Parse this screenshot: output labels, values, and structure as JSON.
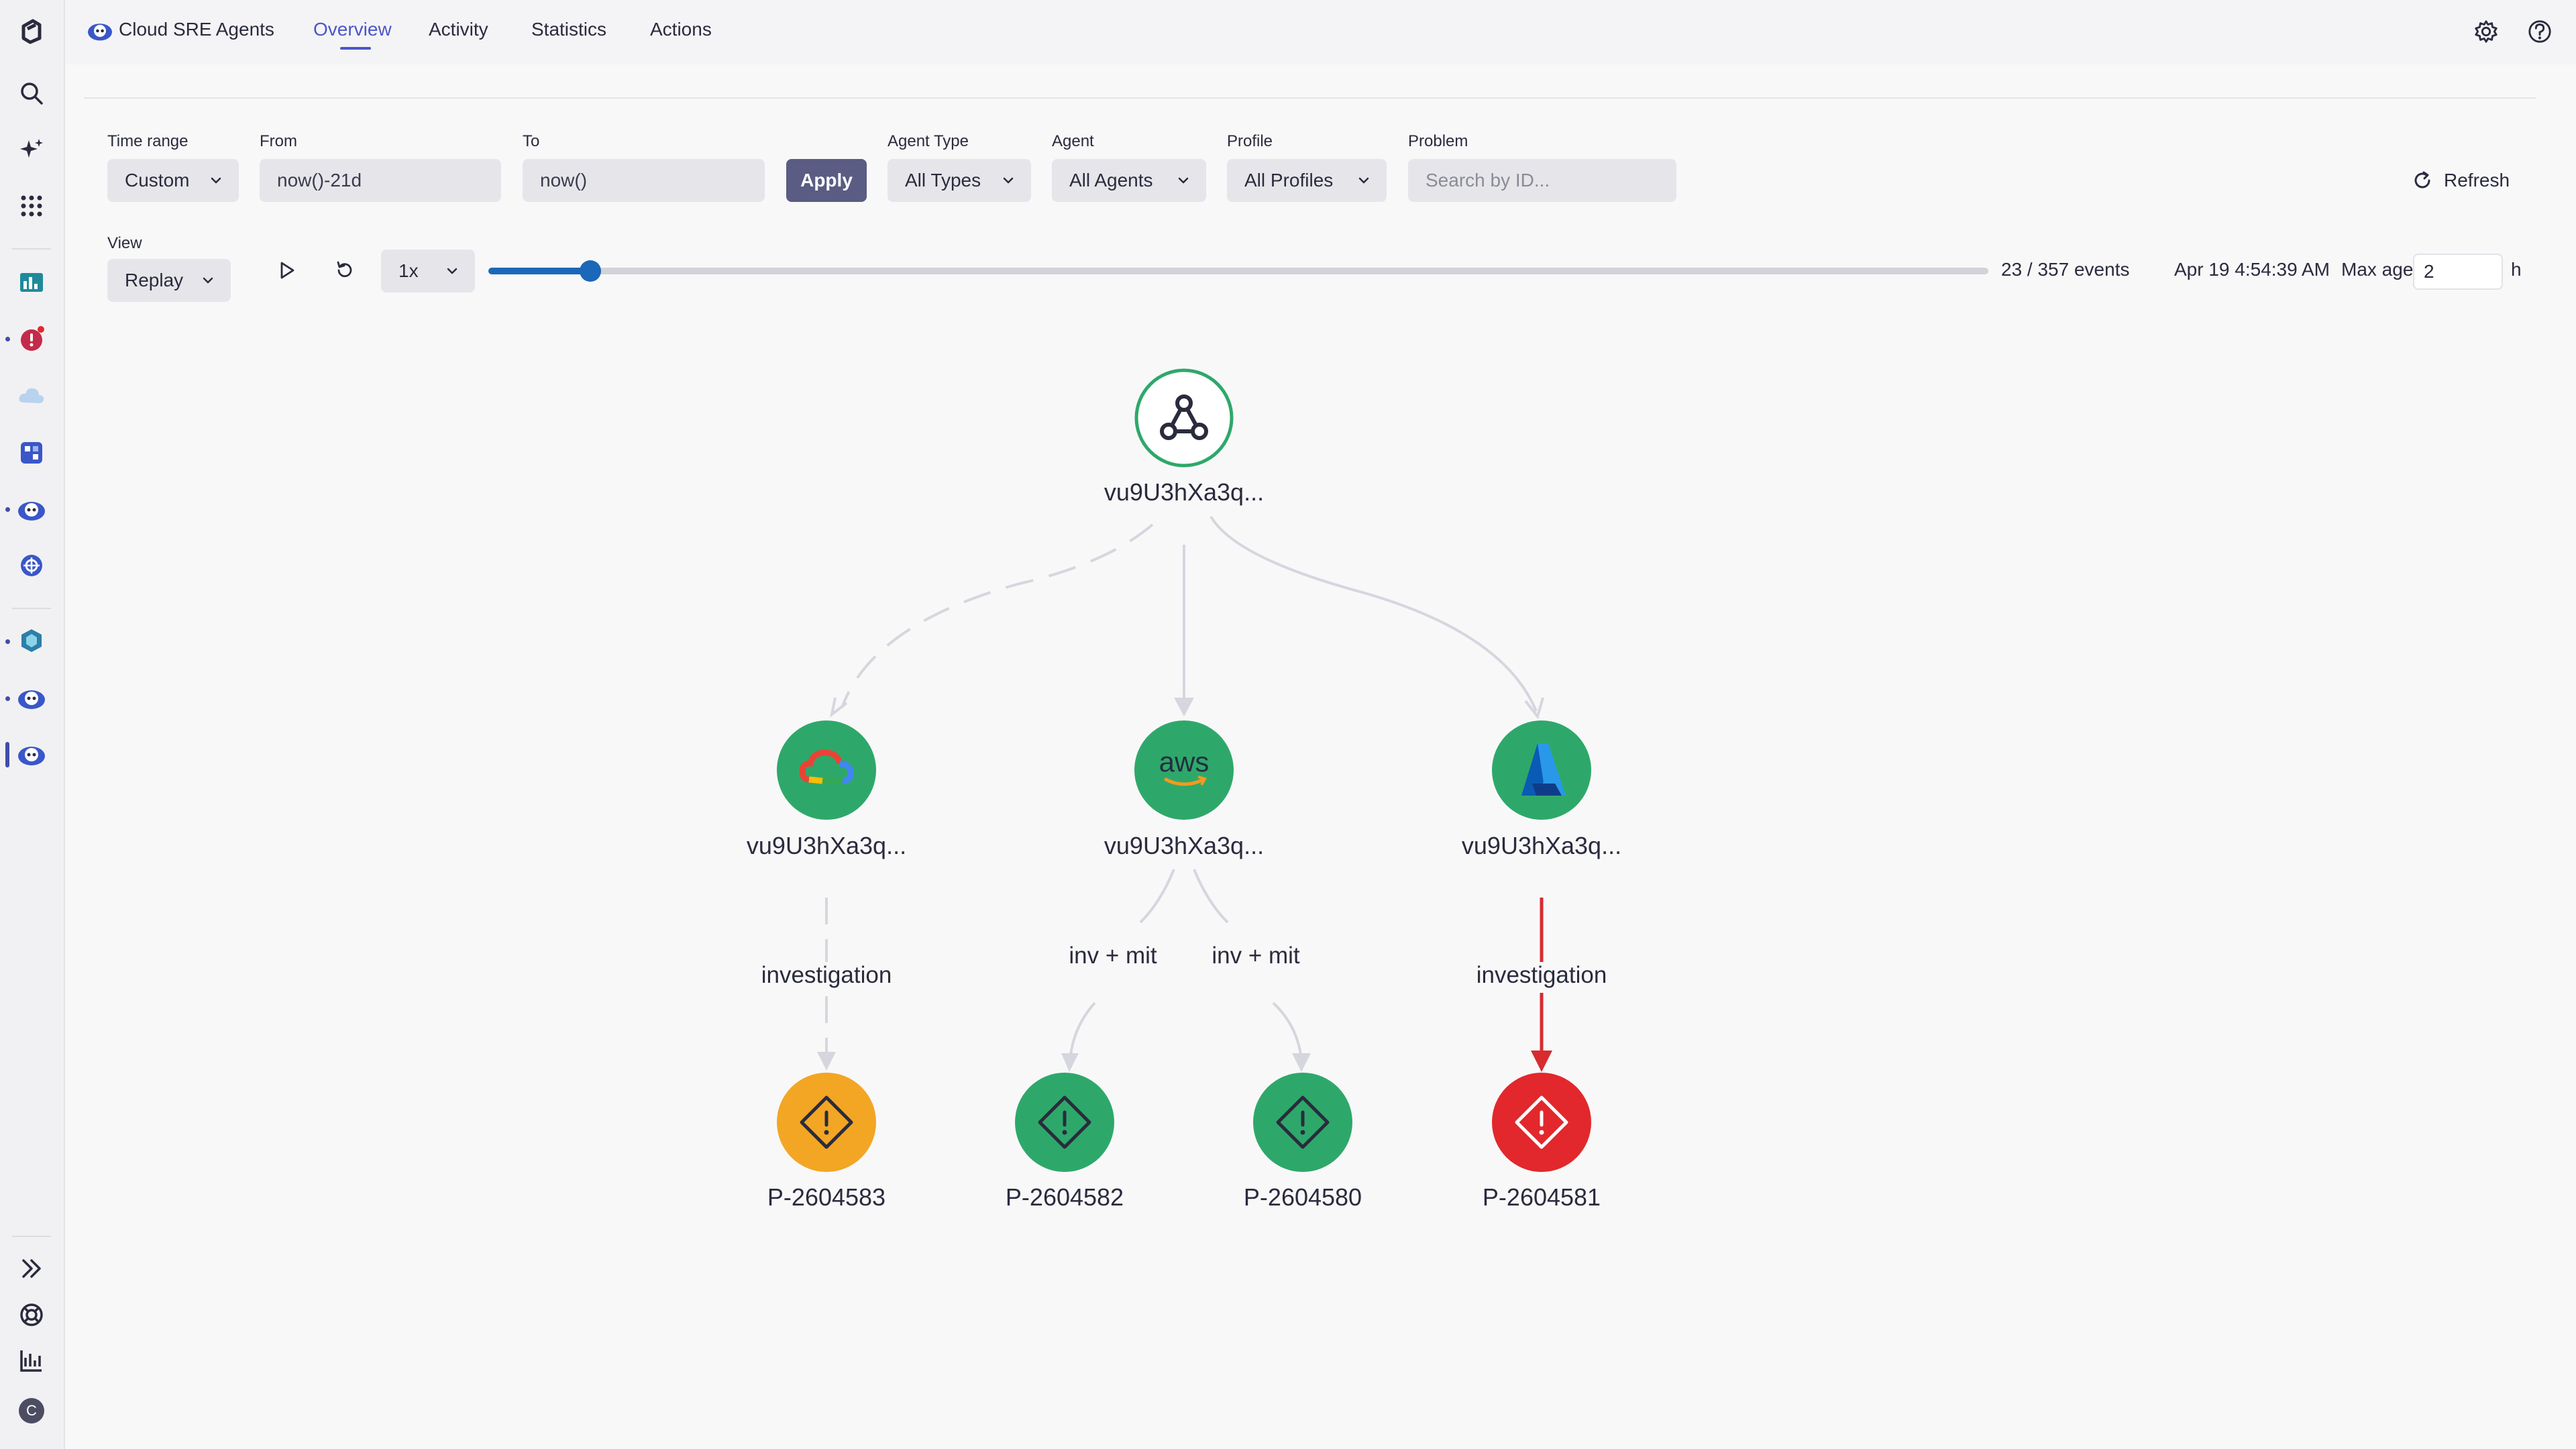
{
  "app": {
    "title": "Cloud SRE Agents"
  },
  "tabs": [
    {
      "label": "Overview",
      "active": true
    },
    {
      "label": "Activity"
    },
    {
      "label": "Statistics"
    },
    {
      "label": "Actions"
    }
  ],
  "filters": {
    "time_range": {
      "label": "Time range",
      "value": "Custom"
    },
    "from": {
      "label": "From",
      "value": "now()-21d"
    },
    "to": {
      "label": "To",
      "value": "now()"
    },
    "apply_label": "Apply",
    "agent_type": {
      "label": "Agent Type",
      "value": "All Types"
    },
    "agent": {
      "label": "Agent",
      "value": "All Agents"
    },
    "profile": {
      "label": "Profile",
      "value": "All Profiles"
    },
    "problem": {
      "label": "Problem",
      "placeholder": "Search by ID..."
    },
    "refresh_label": "Refresh"
  },
  "replay": {
    "view_label": "View",
    "view_value": "Replay",
    "speed": "1x",
    "progress_fraction": 0.068,
    "events_text": "23 / 357 events",
    "timestamp": "Apr 19 4:54:39 AM",
    "max_age_label": "Max age",
    "max_age_value": "2",
    "max_age_unit": "h"
  },
  "graph": {
    "root": {
      "label": "vu9U3hXa3q...",
      "icon": "hub-icon"
    },
    "agents": [
      {
        "label": "vu9U3hXa3q...",
        "icon": "google-cloud-icon",
        "color": "#2ea86a"
      },
      {
        "label": "vu9U3hXa3q...",
        "icon": "aws-icon",
        "color": "#2ea86a"
      },
      {
        "label": "vu9U3hXa3q...",
        "icon": "azure-icon",
        "color": "#2ea86a"
      }
    ],
    "edge_labels": [
      "investigation",
      "inv + mit",
      "inv + mit",
      "investigation"
    ],
    "problems": [
      {
        "label": "P-2604583",
        "color": "#f2a624"
      },
      {
        "label": "P-2604582",
        "color": "#2ea86a"
      },
      {
        "label": "P-2604580",
        "color": "#2ea86a"
      },
      {
        "label": "P-2604581",
        "color": "#e2282c"
      }
    ],
    "aws_text": "aws"
  },
  "user": {
    "initial": "C"
  }
}
